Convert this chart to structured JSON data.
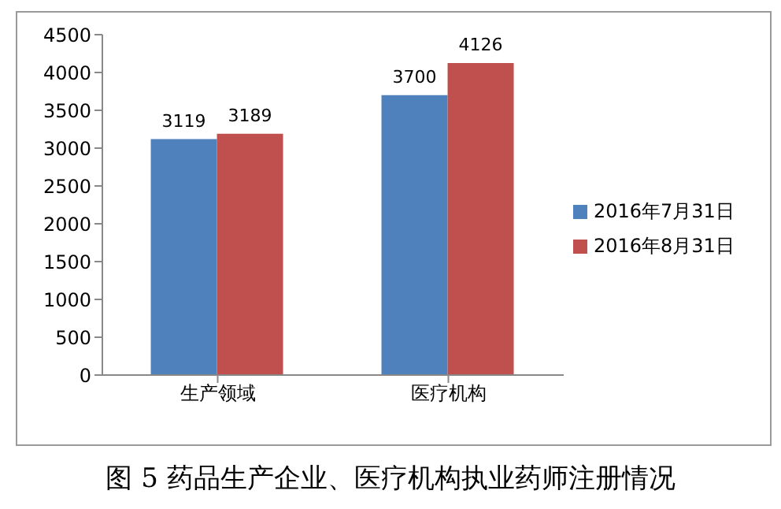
{
  "chart_data": {
    "type": "bar",
    "title": "图 5 药品生产企业、医疗机构执业药师注册情况",
    "categories": [
      "生产领域",
      "医疗机构"
    ],
    "series": [
      {
        "name": "2016年7月31日",
        "color": "#4f81bd",
        "values": [
          3119,
          3700
        ]
      },
      {
        "name": "2016年8月31日",
        "color": "#c0504d",
        "values": [
          3189,
          4126
        ]
      }
    ],
    "ylim": [
      0,
      4500
    ],
    "yticks": [
      0,
      500,
      1000,
      1500,
      2000,
      2500,
      3000,
      3500,
      4000,
      4500
    ],
    "data_labels": true,
    "grid": false,
    "legend": "right"
  }
}
